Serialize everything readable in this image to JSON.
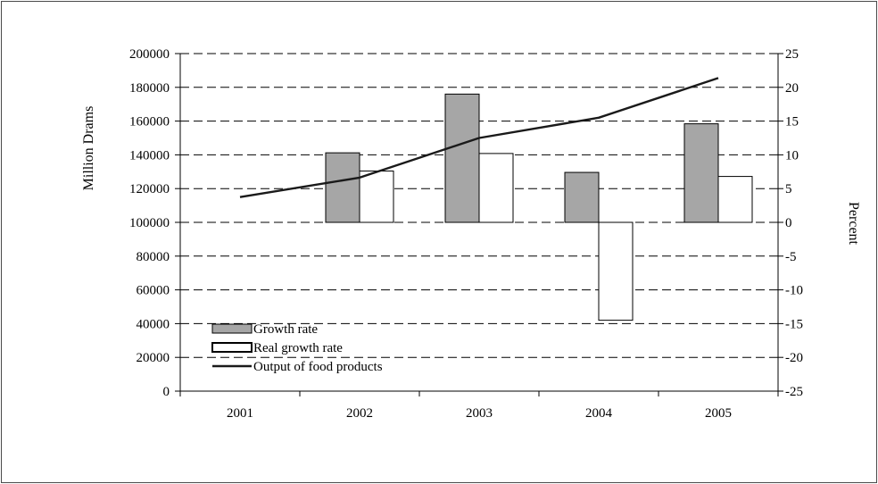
{
  "chart_data": {
    "type": "bar",
    "title": "",
    "xlabel": "",
    "ylabel_left": "Million Drams",
    "ylabel_right": "Percent",
    "categories": [
      "2001",
      "2002",
      "2003",
      "2004",
      "2005"
    ],
    "left_axis": {
      "range": [
        0,
        200000
      ],
      "ticks": [
        0,
        20000,
        40000,
        60000,
        80000,
        100000,
        120000,
        140000,
        160000,
        180000,
        200000
      ],
      "tick_labels": [
        "0",
        "20000",
        "40000",
        "60000",
        "80000",
        "100000",
        "120000",
        "140000",
        "160000",
        "180000",
        "200000"
      ]
    },
    "right_axis": {
      "range": [
        -25,
        25
      ],
      "ticks": [
        -25,
        -20,
        -15,
        -10,
        -5,
        0,
        5,
        10,
        15,
        20,
        25
      ],
      "tick_labels": [
        "-25",
        "-20",
        "-15",
        "-10",
        "-5",
        "0",
        "5",
        "10",
        "15",
        "20",
        "25"
      ]
    },
    "grid": true,
    "legend_position": "bottom-left",
    "series": [
      {
        "name": "Growth rate",
        "kind": "bar",
        "axis": "right",
        "color": "#a6a6a6",
        "values": [
          null,
          10.3,
          19.0,
          7.4,
          14.6
        ]
      },
      {
        "name": "Real growth rate",
        "kind": "bar",
        "axis": "right",
        "color": "#ffffff",
        "values": [
          null,
          7.6,
          10.2,
          -14.5,
          6.8
        ]
      },
      {
        "name": "Output of food products",
        "kind": "line",
        "axis": "left",
        "color": "#1a1a1a",
        "values": [
          115000,
          126500,
          150000,
          162000,
          185500
        ]
      }
    ]
  }
}
